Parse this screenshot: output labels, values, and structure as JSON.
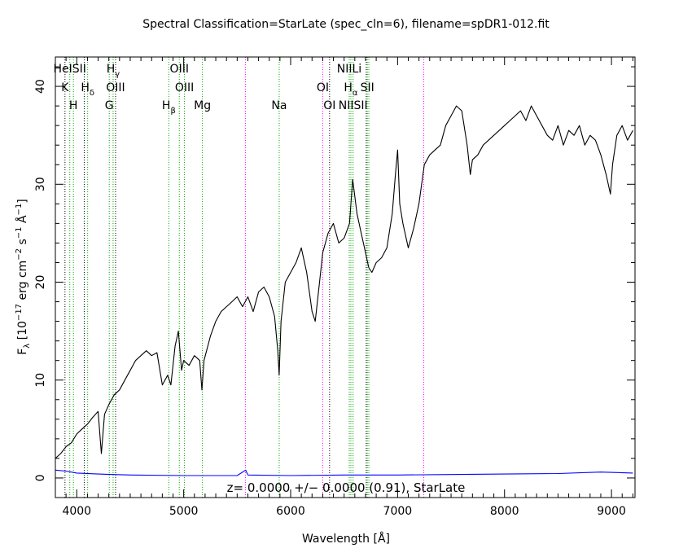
{
  "chart_data": {
    "type": "line",
    "title": "Spectral Classification=StarLate (spec_cln=6), filename=spDR1-012.fit",
    "xlabel": "Wavelength [Å]",
    "ylabel": {
      "base": "F",
      "sub_lambda": "λ",
      "text1": " [10",
      "exp1": "−17",
      "text2": " erg cm",
      "exp2": "−2",
      "text3": " s",
      "exp3": "−1",
      "text4": " Å",
      "exp4": "−1",
      "text5": "]"
    },
    "annotation": "z= 0.0000 +/− 0.0000 (0.91), StarLate",
    "xlim": [
      3800,
      9220
    ],
    "ylim": [
      -2,
      43
    ],
    "xticks": [
      4000,
      5000,
      6000,
      7000,
      8000,
      9000
    ],
    "yticks": [
      0,
      10,
      20,
      30,
      40
    ],
    "colors": {
      "flux": "#000000",
      "error": "#0000ff",
      "emission": "#ff00ff",
      "absorption": "#00aa00",
      "other": "#000000"
    },
    "series": [
      {
        "role": "flux",
        "x": [
          3800,
          3850,
          3900,
          3950,
          4000,
          4050,
          4100,
          4150,
          4200,
          4230,
          4260,
          4300,
          4350,
          4400,
          4450,
          4500,
          4550,
          4600,
          4650,
          4700,
          4750,
          4800,
          4850,
          4880,
          4920,
          4950,
          4980,
          5000,
          5050,
          5100,
          5150,
          5170,
          5190,
          5250,
          5300,
          5350,
          5400,
          5450,
          5500,
          5550,
          5600,
          5650,
          5700,
          5750,
          5800,
          5850,
          5880,
          5893,
          5910,
          5950,
          6000,
          6050,
          6100,
          6150,
          6200,
          6230,
          6270,
          6300,
          6350,
          6400,
          6450,
          6500,
          6550,
          6580,
          6620,
          6660,
          6700,
          6730,
          6760,
          6800,
          6850,
          6900,
          6950,
          6980,
          7000,
          7020,
          7050,
          7100,
          7150,
          7200,
          7250,
          7300,
          7350,
          7400,
          7450,
          7500,
          7550,
          7600,
          7650,
          7680,
          7700,
          7750,
          7800,
          7850,
          7900,
          7950,
          8000,
          8050,
          8100,
          8150,
          8200,
          8250,
          8300,
          8350,
          8400,
          8450,
          8500,
          8550,
          8600,
          8650,
          8700,
          8750,
          8800,
          8850,
          8900,
          8950,
          8990,
          9010,
          9050,
          9100,
          9150,
          9200
        ],
        "y": [
          2.0,
          2.5,
          3.2,
          3.6,
          4.5,
          5.0,
          5.5,
          6.2,
          6.8,
          2.5,
          6.5,
          7.5,
          8.5,
          9.0,
          10.0,
          11.0,
          12.0,
          12.5,
          13.0,
          12.5,
          12.8,
          9.5,
          10.5,
          9.5,
          13.5,
          15.0,
          11.0,
          12.0,
          11.5,
          12.5,
          12.0,
          9.0,
          12.0,
          14.5,
          16.0,
          17.0,
          17.5,
          18.0,
          18.5,
          17.5,
          18.5,
          17.0,
          19.0,
          19.5,
          18.5,
          16.5,
          13.0,
          10.5,
          16.0,
          20.0,
          21.0,
          22.0,
          23.5,
          21.0,
          17.0,
          16.0,
          20.0,
          23.0,
          25.0,
          26.0,
          24.0,
          24.5,
          26.0,
          30.5,
          27.0,
          25.0,
          23.0,
          21.5,
          21.0,
          22.0,
          22.5,
          23.5,
          27.0,
          31.0,
          33.5,
          28.0,
          26.0,
          23.5,
          25.5,
          28.0,
          32.0,
          33.0,
          33.5,
          34.0,
          36.0,
          37.0,
          38.0,
          37.5,
          34.0,
          31.0,
          32.5,
          33.0,
          34.0,
          34.5,
          35.0,
          35.5,
          36.0,
          36.5,
          37.0,
          37.5,
          36.5,
          38.0,
          37.0,
          36.0,
          35.0,
          34.5,
          36.0,
          34.0,
          35.5,
          35.0,
          36.0,
          34.0,
          35.0,
          34.5,
          33.0,
          31.0,
          29.0,
          32.0,
          35.0,
          36.0,
          34.5,
          35.5
        ]
      },
      {
        "role": "error",
        "x": [
          3800,
          3900,
          4000,
          4200,
          4500,
          5000,
          5500,
          5580,
          5600,
          6000,
          6500,
          7000,
          7500,
          8000,
          8500,
          8900,
          9200
        ],
        "y": [
          0.8,
          0.7,
          0.5,
          0.4,
          0.3,
          0.25,
          0.25,
          0.8,
          0.3,
          0.25,
          0.3,
          0.3,
          0.35,
          0.4,
          0.45,
          0.6,
          0.5
        ]
      }
    ],
    "lines": [
      {
        "x": 3890,
        "kind": "other",
        "labels": [
          {
            "row": 1,
            "text": "K"
          }
        ]
      },
      {
        "x": 3935,
        "kind": "absorption",
        "labels": [
          {
            "row": 0,
            "text": "HeISII"
          }
        ]
      },
      {
        "x": 3969,
        "kind": "absorption",
        "labels": [
          {
            "row": 2,
            "text": "H"
          }
        ]
      },
      {
        "x": 4070,
        "kind": "other",
        "labels": []
      },
      {
        "x": 4102,
        "kind": "absorption",
        "labels": [
          {
            "row": 1,
            "text": "H",
            "sub": "δ"
          }
        ]
      },
      {
        "x": 4304,
        "kind": "absorption",
        "labels": [
          {
            "row": 2,
            "text": "G"
          }
        ]
      },
      {
        "x": 4340,
        "kind": "absorption",
        "labels": [
          {
            "row": 0,
            "text": "H",
            "sub": "γ"
          }
        ]
      },
      {
        "x": 4363,
        "kind": "other",
        "labels": [
          {
            "row": 1,
            "text": "OIII"
          }
        ]
      },
      {
        "x": 4861,
        "kind": "absorption",
        "labels": [
          {
            "row": 2,
            "text": "H",
            "sub": "β"
          }
        ]
      },
      {
        "x": 4959,
        "kind": "absorption",
        "labels": [
          {
            "row": 0,
            "text": "OIII"
          }
        ]
      },
      {
        "x": 5007,
        "kind": "absorption",
        "labels": [
          {
            "row": 1,
            "text": "OIII"
          }
        ]
      },
      {
        "x": 5175,
        "kind": "absorption",
        "labels": [
          {
            "row": 2,
            "text": "Mg"
          }
        ]
      },
      {
        "x": 5577,
        "kind": "emission",
        "labels": []
      },
      {
        "x": 5893,
        "kind": "absorption",
        "labels": [
          {
            "row": 2,
            "text": "Na"
          }
        ]
      },
      {
        "x": 6300,
        "kind": "emission",
        "labels": [
          {
            "row": 1,
            "text": "OI"
          }
        ]
      },
      {
        "x": 6364,
        "kind": "other",
        "labels": [
          {
            "row": 2,
            "text": "OI"
          }
        ]
      },
      {
        "x": 6548,
        "kind": "absorption",
        "labels": [
          {
            "row": 0,
            "text": "NIILi"
          }
        ]
      },
      {
        "x": 6563,
        "kind": "absorption",
        "labels": [
          {
            "row": 1,
            "text": "H",
            "sub": "α"
          }
        ]
      },
      {
        "x": 6584,
        "kind": "absorption",
        "labels": [
          {
            "row": 2,
            "text": "NIISII"
          }
        ]
      },
      {
        "x": 6707,
        "kind": "other",
        "labels": []
      },
      {
        "x": 6717,
        "kind": "absorption",
        "labels": [
          {
            "row": 1,
            "text": "SII"
          }
        ]
      },
      {
        "x": 6731,
        "kind": "absorption",
        "labels": []
      },
      {
        "x": 7245,
        "kind": "emission",
        "labels": []
      }
    ]
  }
}
